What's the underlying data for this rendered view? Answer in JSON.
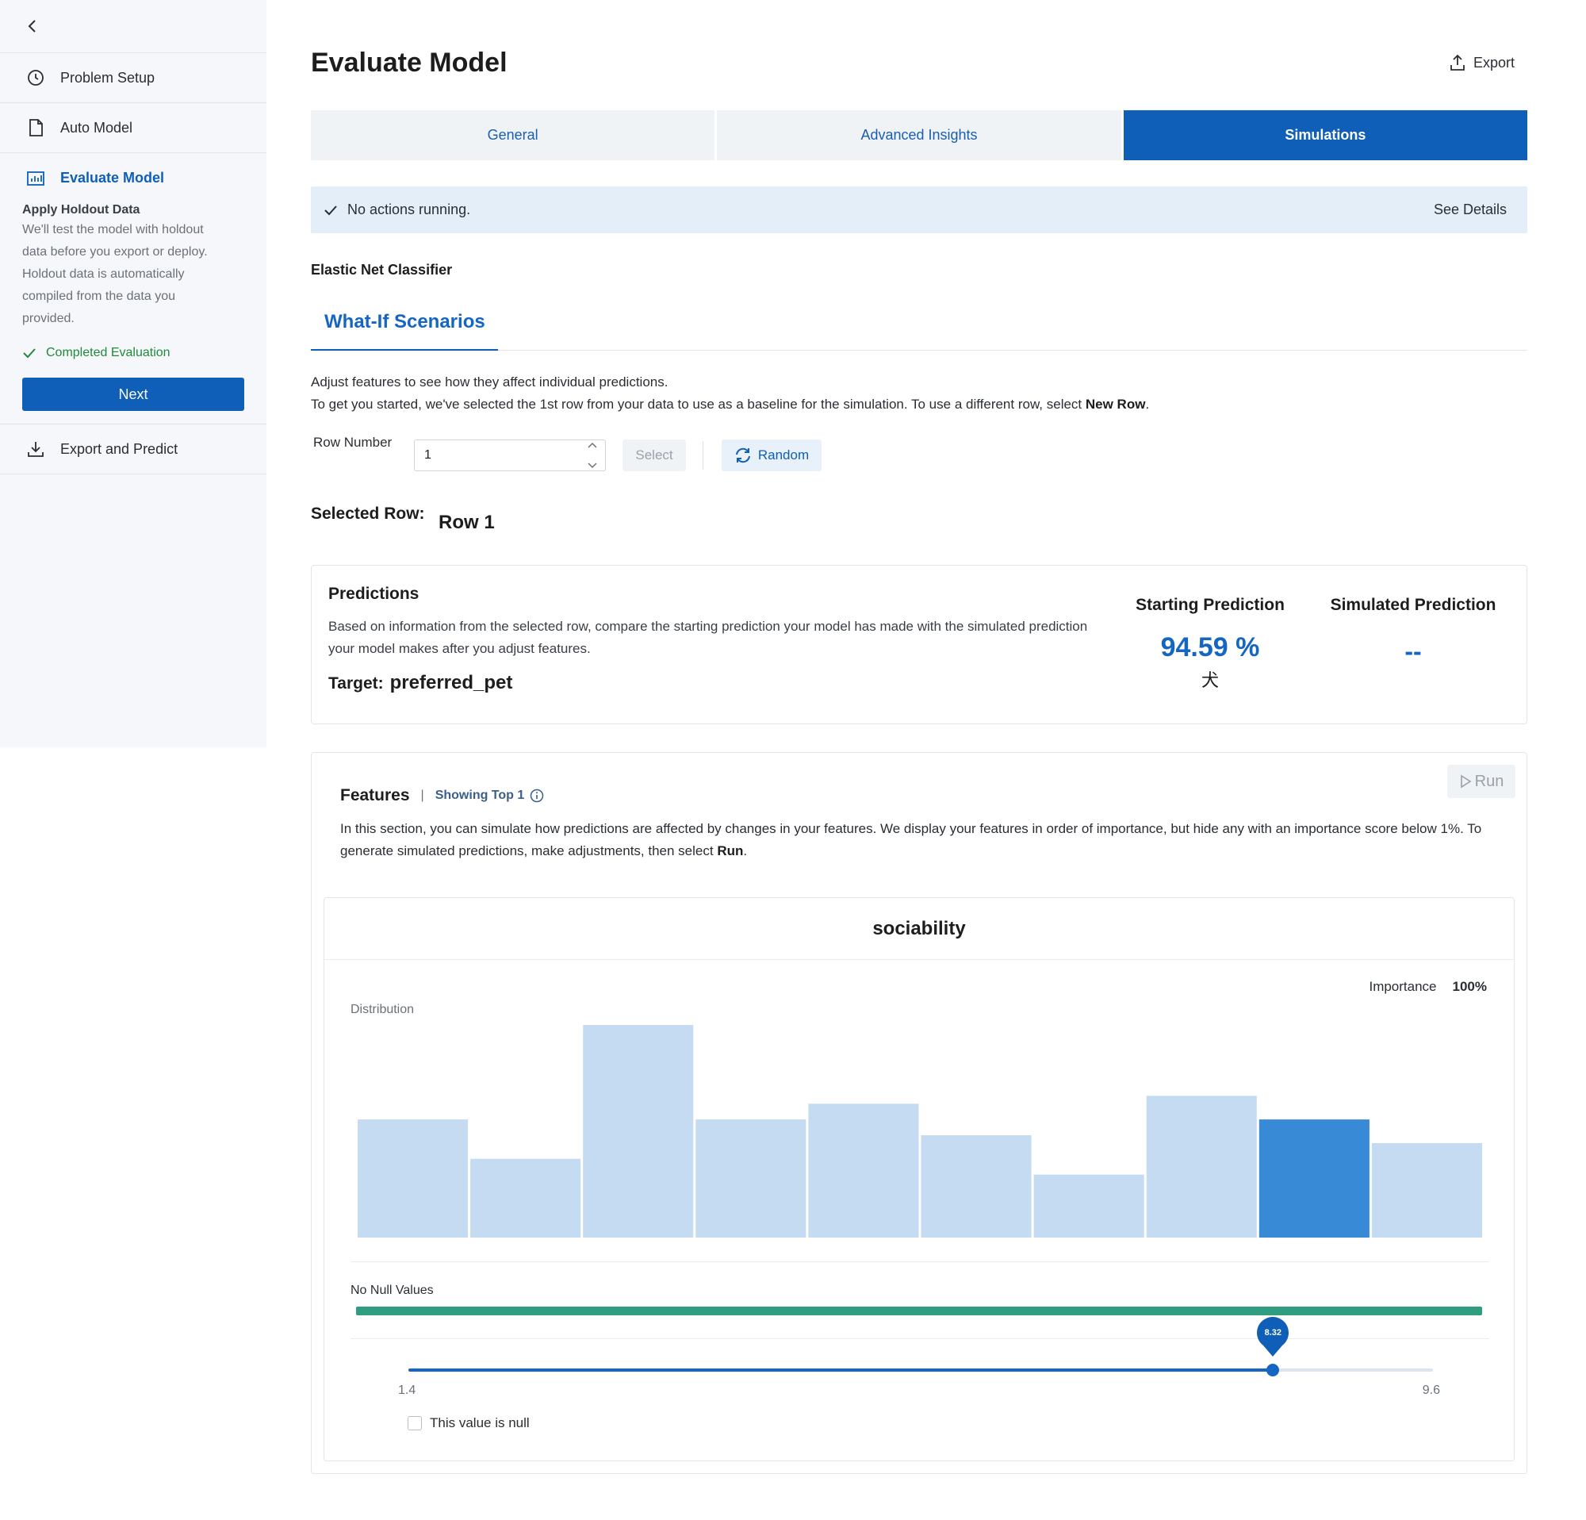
{
  "sidebar": {
    "items": [
      {
        "label": "Problem Setup",
        "icon": "clock-icon"
      },
      {
        "label": "Auto Model",
        "icon": "document-icon"
      },
      {
        "label": "Evaluate Model",
        "icon": "chart-icon"
      },
      {
        "label": "Export and Predict",
        "icon": "download-icon"
      }
    ],
    "sub": {
      "title": "Apply Holdout Data",
      "text": "We'll test the model with holdout data before you export or deploy. Holdout data is automatically compiled from the data you provided.",
      "status": "Completed Evaluation",
      "next_label": "Next"
    }
  },
  "header": {
    "title": "Evaluate Model",
    "export_label": "Export"
  },
  "tabs": [
    {
      "label": "General"
    },
    {
      "label": "Advanced Insights"
    },
    {
      "label": "Simulations"
    }
  ],
  "status": {
    "text": "No actions running.",
    "details_label": "See Details"
  },
  "model_name": "Elastic Net Classifier",
  "subtab": "What-If Scenarios",
  "description": {
    "line1": "Adjust features to see how they affect individual predictions.",
    "line2_prefix": "To get you started, we've selected the 1st row from your data to use as a baseline for the simulation. To use a different row, select ",
    "line2_bold": "New Row",
    "line2_suffix": "."
  },
  "row_picker": {
    "label": "Row Number",
    "value": "1",
    "select_label": "Select",
    "random_label": "Random"
  },
  "selected_row": {
    "label": "Selected Row:",
    "value": "Row 1"
  },
  "predictions": {
    "title": "Predictions",
    "text": "Based on information from the selected row, compare the starting prediction your model has made with the simulated prediction your model makes after you adjust features.",
    "target_label": "Target:",
    "target_value": "preferred_pet",
    "starting_label": "Starting Prediction",
    "starting_value": "94.59 %",
    "starting_class": "犬",
    "simulated_label": "Simulated Prediction",
    "simulated_value": "--"
  },
  "features": {
    "title": "Features",
    "pipe": "|",
    "showing": "Showing Top 1",
    "run_label": "Run",
    "text_prefix": "In this section, you can simulate how predictions are affected by changes in your features. We display your features in order of importance, but hide any with an importance score below 1%. To generate simulated predictions, make adjustments, then select ",
    "text_bold": "Run",
    "text_suffix": ".",
    "feature": {
      "name": "sociability",
      "importance_label": "Importance",
      "importance_value": "100%",
      "distribution_label": "Distribution",
      "null_label": "No Null Values",
      "null_fraction": 0,
      "slider": {
        "min_label": "1.4",
        "max_label": "9.6",
        "min": 1.4,
        "max": 9.6,
        "value": 8.32,
        "value_label": "8.32"
      },
      "null_checkbox_label": "This value is null"
    }
  },
  "colors": {
    "accent": "#0f5fb8",
    "bar": "#c5dbf2",
    "bar_highlight": "#3889d6",
    "null_bar": "#2f9e80"
  },
  "chart_data": {
    "type": "bar",
    "categories": [
      "1",
      "2",
      "3",
      "4",
      "5",
      "6",
      "7",
      "8",
      "9",
      "10"
    ],
    "values": [
      15,
      10,
      27,
      15,
      17,
      13,
      8,
      18,
      15,
      12
    ],
    "highlight_index": 8,
    "title": "",
    "xlabel": "",
    "ylabel": "",
    "ylim": [
      0,
      27
    ]
  }
}
